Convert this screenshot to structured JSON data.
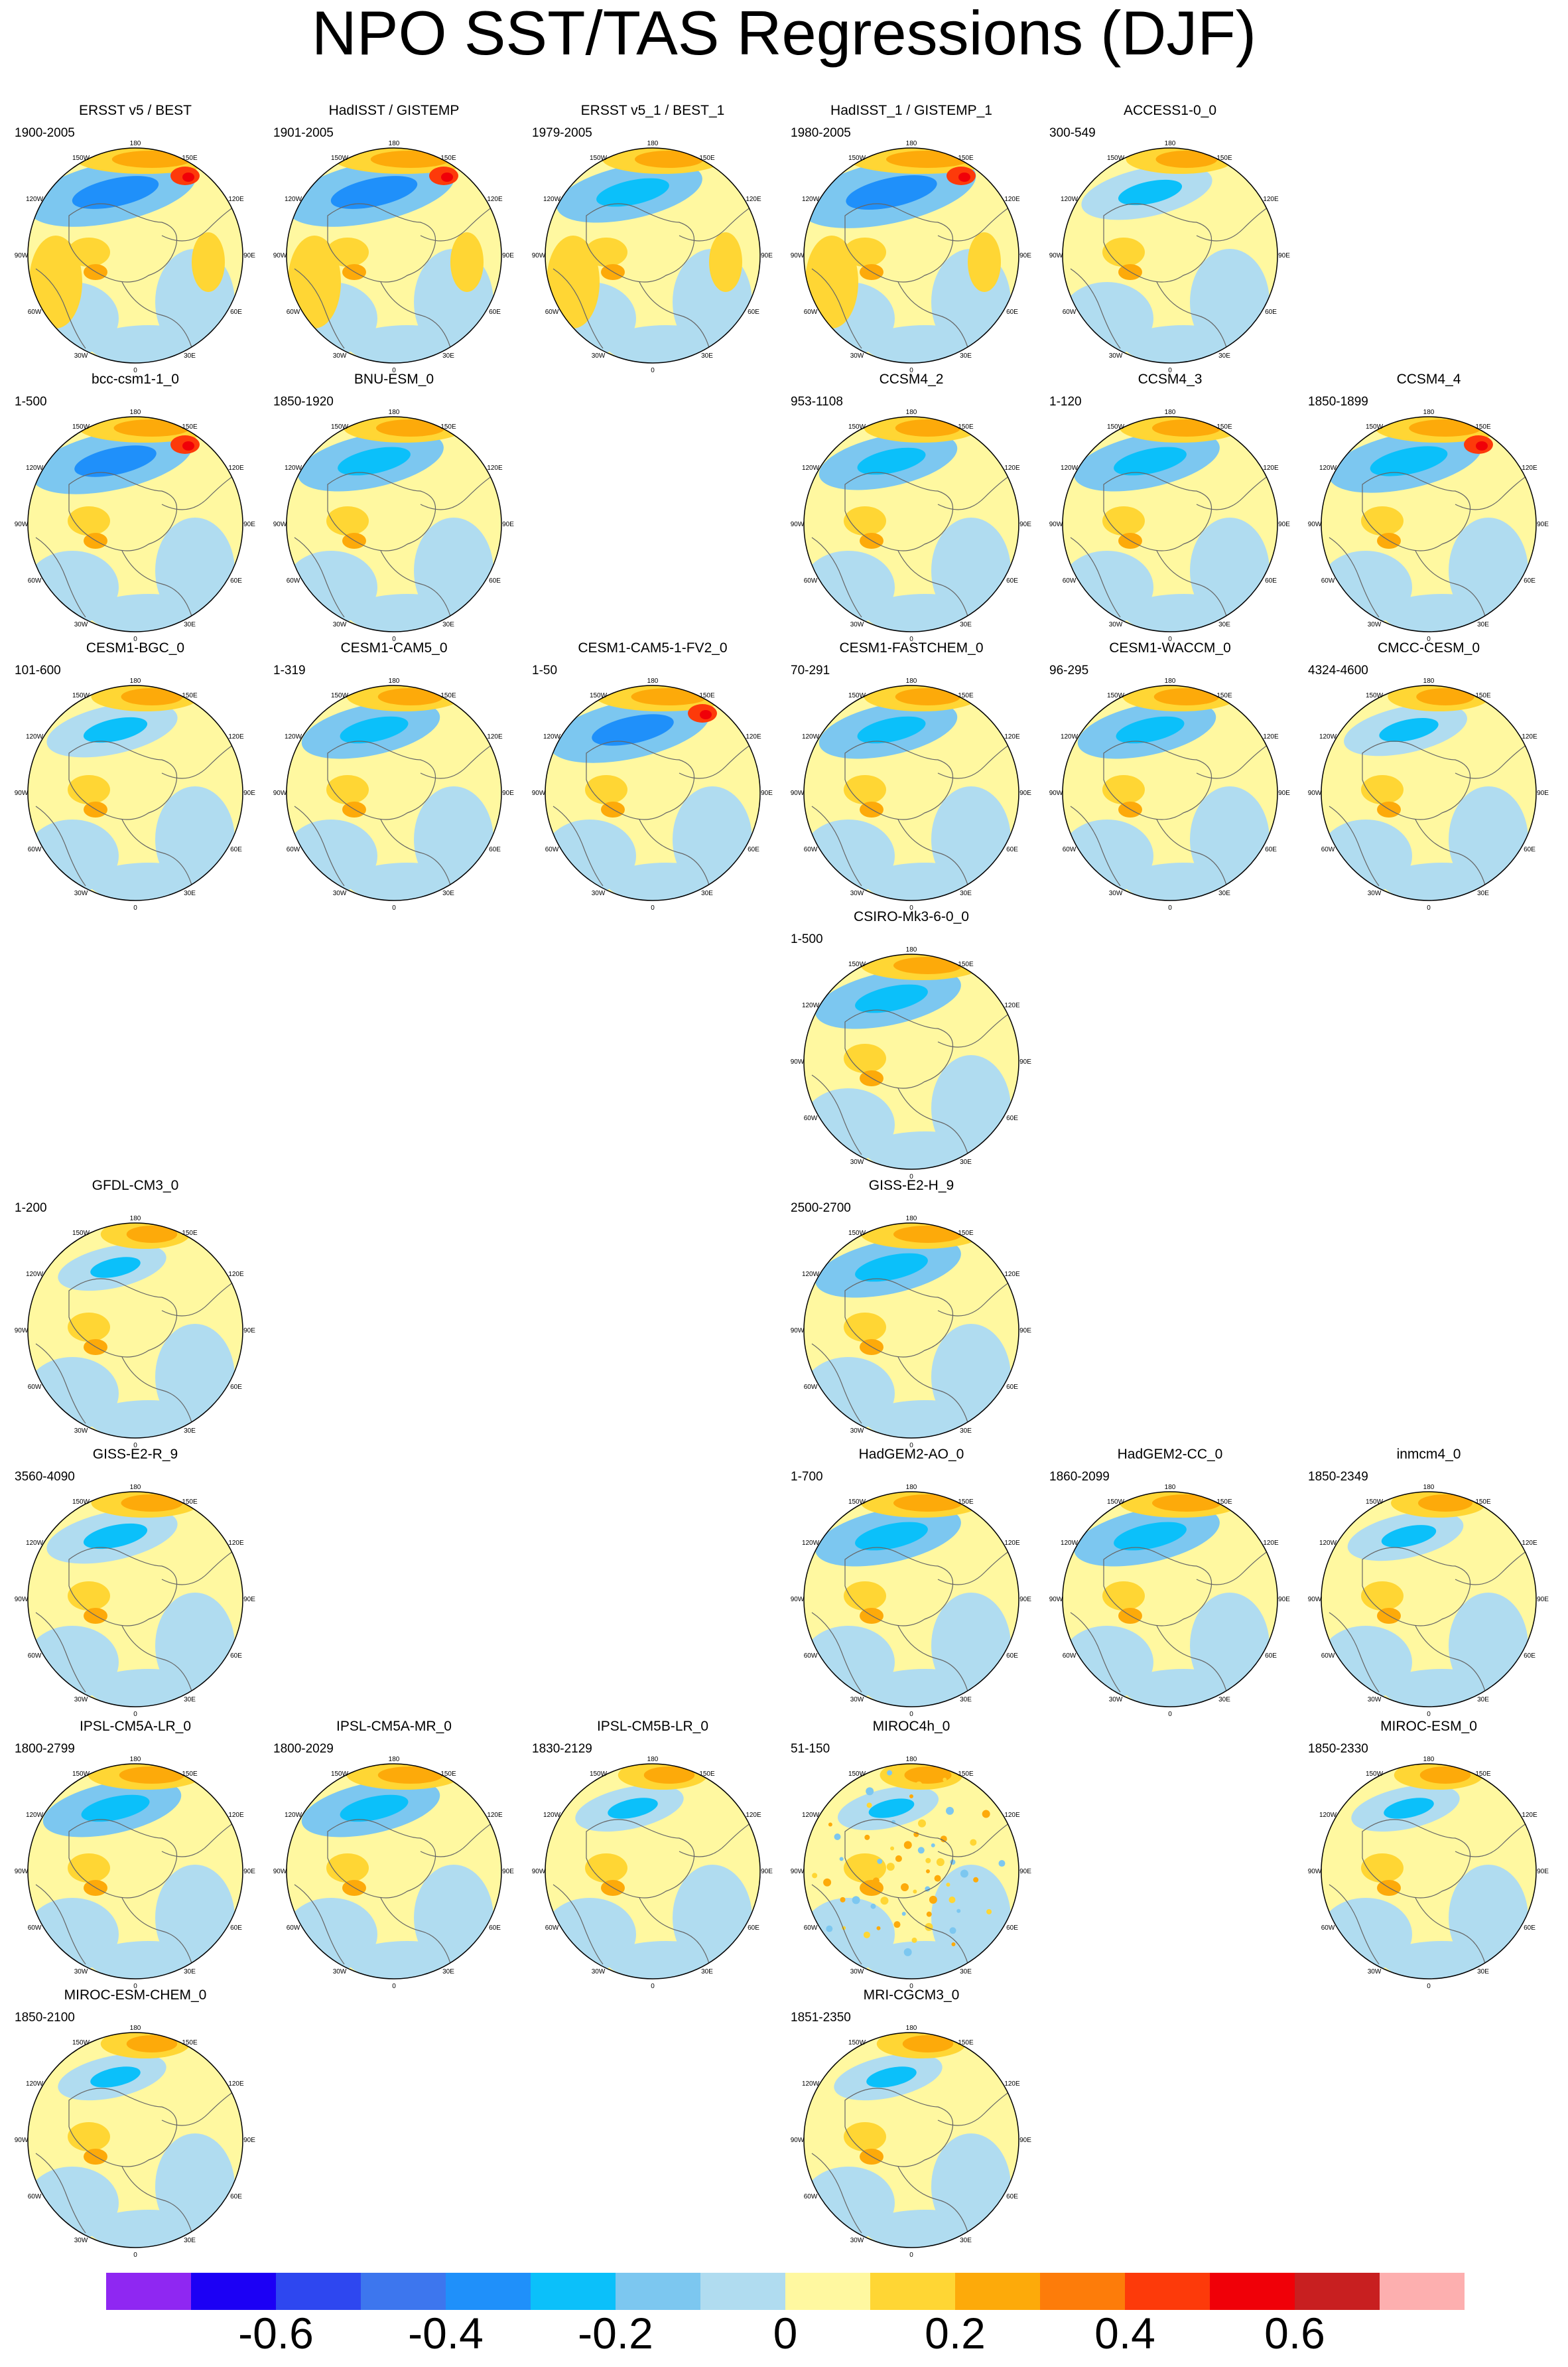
{
  "title": "NPO SST/TAS Regressions (DJF)",
  "chart_data": {
    "type": "heatmap",
    "projection": "north polar stereographic",
    "variable": "SST/TAS regression onto NPO index",
    "season": "DJF",
    "map_labels": {
      "longitudes": [
        "180",
        "150W",
        "150E",
        "120W",
        "120E",
        "90W",
        "90E",
        "60W",
        "60E",
        "30W",
        "30E",
        "0"
      ]
    },
    "panels": [
      {
        "row": 0,
        "col": 0,
        "name": "ERSST v5 / BEST",
        "years": "1900-2005",
        "pattern": "obs",
        "strength": 0.95
      },
      {
        "row": 0,
        "col": 1,
        "name": "HadISST / GISTEMP",
        "years": "1901-2005",
        "pattern": "obs",
        "strength": 0.95
      },
      {
        "row": 0,
        "col": 2,
        "name": "ERSST v5_1 / BEST_1",
        "years": "1979-2005",
        "pattern": "obs",
        "strength": 0.8
      },
      {
        "row": 0,
        "col": 3,
        "name": "HadISST_1 / GISTEMP_1",
        "years": "1980-2005",
        "pattern": "obs",
        "strength": 1.0
      },
      {
        "row": 0,
        "col": 4,
        "name": "ACCESS1-0_0",
        "years": "300-549",
        "pattern": "model",
        "strength": 0.7
      },
      {
        "row": 1,
        "col": 0,
        "name": "bcc-csm1-1_0",
        "years": "1-500",
        "pattern": "model",
        "strength": 0.9
      },
      {
        "row": 1,
        "col": 1,
        "name": "BNU-ESM_0",
        "years": "1850-1920",
        "pattern": "model",
        "strength": 0.8
      },
      {
        "row": 1,
        "col": 3,
        "name": "CCSM4_2",
        "years": "953-1108",
        "pattern": "model",
        "strength": 0.75
      },
      {
        "row": 1,
        "col": 4,
        "name": "CCSM4_3",
        "years": "1-120",
        "pattern": "model",
        "strength": 0.8
      },
      {
        "row": 1,
        "col": 5,
        "name": "CCSM4_4",
        "years": "1850-1899",
        "pattern": "model",
        "strength": 0.85
      },
      {
        "row": 2,
        "col": 0,
        "name": "CESM1-BGC_0",
        "years": "101-600",
        "pattern": "model",
        "strength": 0.7
      },
      {
        "row": 2,
        "col": 1,
        "name": "CESM1-CAM5_0",
        "years": "1-319",
        "pattern": "model",
        "strength": 0.75
      },
      {
        "row": 2,
        "col": 2,
        "name": "CESM1-CAM5-1-FV2_0",
        "years": "1-50",
        "pattern": "model",
        "strength": 0.9
      },
      {
        "row": 2,
        "col": 3,
        "name": "CESM1-FASTCHEM_0",
        "years": "70-291",
        "pattern": "model",
        "strength": 0.75
      },
      {
        "row": 2,
        "col": 4,
        "name": "CESM1-WACCM_0",
        "years": "96-295",
        "pattern": "model",
        "strength": 0.75
      },
      {
        "row": 2,
        "col": 5,
        "name": "CMCC-CESM_0",
        "years": "4324-4600",
        "pattern": "model",
        "strength": 0.65
      },
      {
        "row": 3,
        "col": 3,
        "name": "CSIRO-Mk3-6-0_0",
        "years": "1-500",
        "pattern": "model",
        "strength": 0.8
      },
      {
        "row": 4,
        "col": 0,
        "name": "GFDL-CM3_0",
        "years": "1-200",
        "pattern": "model",
        "strength": 0.55
      },
      {
        "row": 4,
        "col": 3,
        "name": "GISS-E2-H_9",
        "years": "2500-2700",
        "pattern": "model",
        "strength": 0.8
      },
      {
        "row": 5,
        "col": 0,
        "name": "GISS-E2-R_9",
        "years": "3560-4090",
        "pattern": "model",
        "strength": 0.7
      },
      {
        "row": 5,
        "col": 3,
        "name": "HadGEM2-AO_0",
        "years": "1-700",
        "pattern": "model",
        "strength": 0.8
      },
      {
        "row": 5,
        "col": 4,
        "name": "HadGEM2-CC_0",
        "years": "1860-2099",
        "pattern": "model",
        "strength": 0.8
      },
      {
        "row": 5,
        "col": 5,
        "name": "inmcm4_0",
        "years": "1850-2349",
        "pattern": "model",
        "strength": 0.6
      },
      {
        "row": 6,
        "col": 0,
        "name": "IPSL-CM5A-LR_0",
        "years": "1800-2799",
        "pattern": "model",
        "strength": 0.75
      },
      {
        "row": 6,
        "col": 1,
        "name": "IPSL-CM5A-MR_0",
        "years": "1800-2029",
        "pattern": "model",
        "strength": 0.75
      },
      {
        "row": 6,
        "col": 2,
        "name": "IPSL-CM5B-LR_0",
        "years": "1830-2129",
        "pattern": "model",
        "strength": 0.55
      },
      {
        "row": 6,
        "col": 3,
        "name": "MIROC4h_0",
        "years": "51-150",
        "pattern": "noisy",
        "strength": 0.5
      },
      {
        "row": 6,
        "col": 5,
        "name": "MIROC-ESM_0",
        "years": "1850-2330",
        "pattern": "model",
        "strength": 0.55
      },
      {
        "row": 7,
        "col": 0,
        "name": "MIROC-ESM-CHEM_0",
        "years": "1850-2100",
        "pattern": "model",
        "strength": 0.55
      },
      {
        "row": 7,
        "col": 3,
        "name": "MRI-CGCM3_0",
        "years": "1851-2350",
        "pattern": "model",
        "strength": 0.55
      }
    ],
    "colorbar": {
      "colors": [
        "#8f27f2",
        "#1c00f5",
        "#2e47f0",
        "#3d76ee",
        "#1f90fa",
        "#0bc0fa",
        "#7cc7f0",
        "#b0dcf0",
        "#fff8a0",
        "#ffd634",
        "#fdaa0a",
        "#fd7c0a",
        "#fd3a0a",
        "#f00008",
        "#c81f20",
        "#fdafaf"
      ],
      "tick_labels": [
        "-0.6",
        "-0.4",
        "-0.2",
        "0",
        "0.2",
        "0.4",
        "0.6"
      ],
      "tick_values": [
        -0.6,
        -0.4,
        -0.2,
        0,
        0.2,
        0.4,
        0.6
      ]
    }
  }
}
